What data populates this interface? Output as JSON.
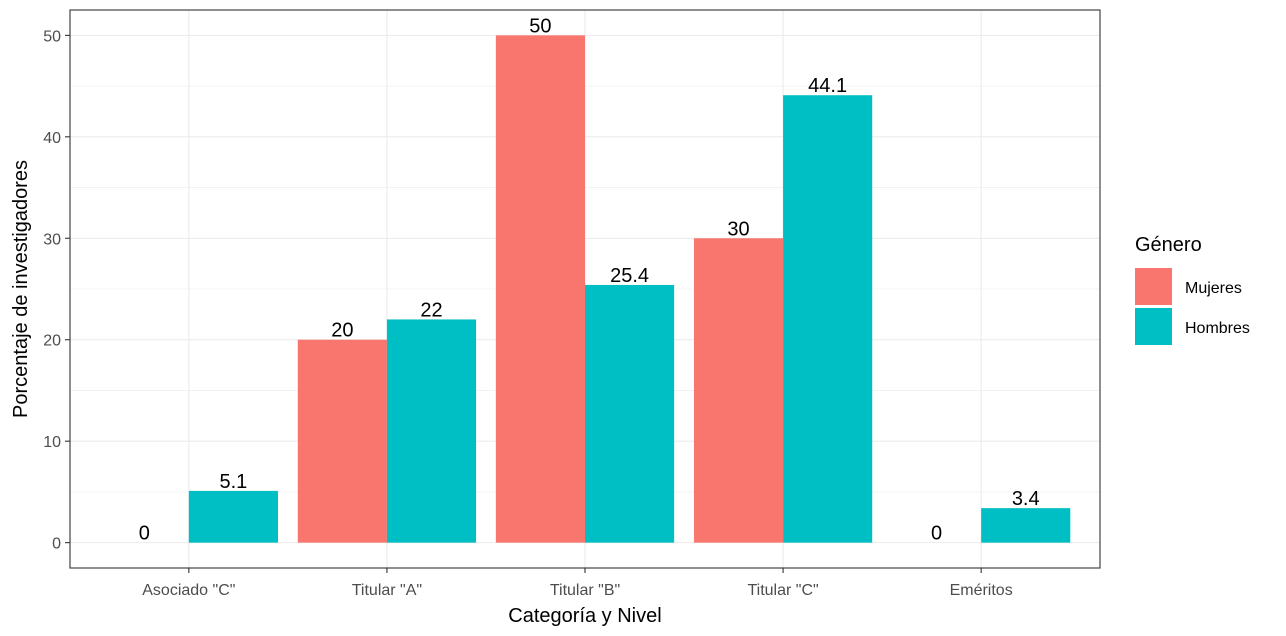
{
  "chart_data": {
    "type": "bar",
    "title": "",
    "xlabel": "Categoría y Nivel",
    "ylabel": "Porcentaje de investigadores",
    "categories": [
      "Asociado \"C\"",
      "Titular \"A\"",
      "Titular \"B\"",
      "Titular \"C\"",
      "Eméritos"
    ],
    "series": [
      {
        "name": "Mujeres",
        "color": "#F8766D",
        "values": [
          0,
          20,
          50,
          30,
          0
        ],
        "labels": [
          "0",
          "20",
          "50",
          "30",
          "0"
        ]
      },
      {
        "name": "Hombres",
        "color": "#00BFC4",
        "values": [
          5.1,
          22,
          25.4,
          44.1,
          3.4
        ],
        "labels": [
          "5.1",
          "22",
          "25.4",
          "44.1",
          "3.4"
        ]
      }
    ],
    "ylim": [
      -2.5,
      52.5
    ],
    "yticks": [
      0,
      10,
      20,
      30,
      40,
      50
    ],
    "ytick_labels": [
      "0",
      "10",
      "20",
      "30",
      "40",
      "50"
    ],
    "grid": true,
    "legend": {
      "title": "Género",
      "position": "right"
    }
  }
}
